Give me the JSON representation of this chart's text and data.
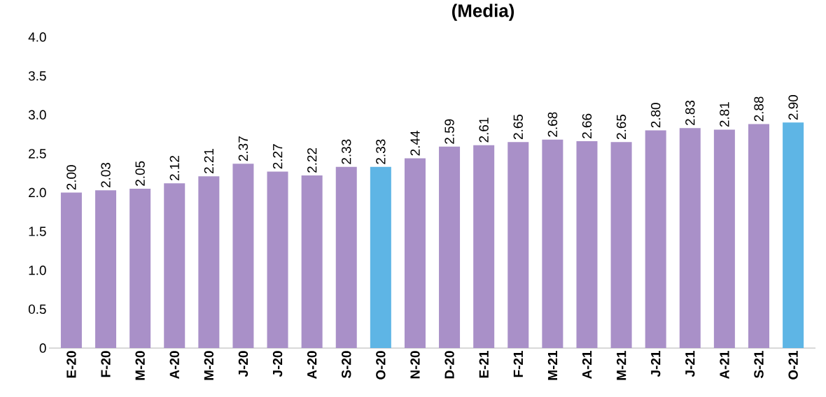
{
  "chart_data": {
    "type": "bar",
    "title": "(Media)",
    "categories": [
      "E-20",
      "F-20",
      "M-20",
      "A-20",
      "M-20",
      "J-20",
      "J-20",
      "A-20",
      "S-20",
      "O-20",
      "N-20",
      "D-20",
      "E-21",
      "F-21",
      "M-21",
      "A-21",
      "M-21",
      "J-21",
      "J-21",
      "A-21",
      "S-21",
      "O-21"
    ],
    "values": [
      2.0,
      2.03,
      2.05,
      2.12,
      2.21,
      2.37,
      2.27,
      2.22,
      2.33,
      2.33,
      2.44,
      2.59,
      2.61,
      2.65,
      2.68,
      2.66,
      2.65,
      2.8,
      2.83,
      2.81,
      2.88,
      2.9
    ],
    "value_labels": [
      "2.00",
      "2.03",
      "2.05",
      "2.12",
      "2.21",
      "2.37",
      "2.27",
      "2.22",
      "2.33",
      "2.33",
      "2.44",
      "2.59",
      "2.61",
      "2.65",
      "2.68",
      "2.66",
      "2.65",
      "2.80",
      "2.83",
      "2.81",
      "2.88",
      "2.90"
    ],
    "colors": [
      "#a990c8",
      "#a990c8",
      "#a990c8",
      "#a990c8",
      "#a990c8",
      "#a990c8",
      "#a990c8",
      "#a990c8",
      "#a990c8",
      "#5eb5e5",
      "#a990c8",
      "#a990c8",
      "#a990c8",
      "#a990c8",
      "#a990c8",
      "#a990c8",
      "#a990c8",
      "#a990c8",
      "#a990c8",
      "#a990c8",
      "#a990c8",
      "#5eb5e5"
    ],
    "ylim": [
      0,
      4
    ],
    "yticks": [
      0,
      {
        "value": 0.5,
        "label": "0.5"
      },
      {
        "value": 1,
        "label": "1.0"
      },
      {
        "value": 1.5,
        "label": "1.5"
      },
      {
        "value": 2,
        "label": "2.0"
      },
      {
        "value": 2.5,
        "label": "2.5"
      },
      {
        "value": 3,
        "label": "3.0"
      },
      {
        "value": 3.5,
        "label": "3.5"
      },
      {
        "value": 4,
        "label": "4.0"
      }
    ],
    "grid": false
  }
}
